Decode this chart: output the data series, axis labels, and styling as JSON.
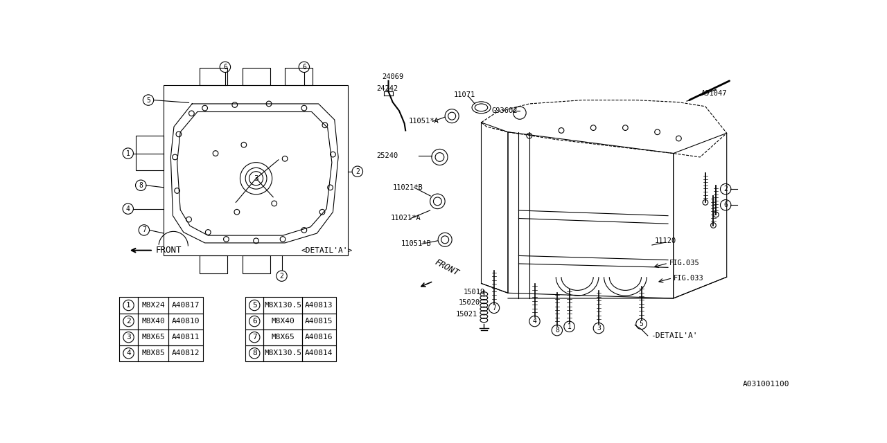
{
  "bg_color": "#ffffff",
  "line_color": "#000000",
  "diagram_code": "A031001100",
  "table_left": [
    [
      "1",
      "M8X24",
      "A40817"
    ],
    [
      "2",
      "M8X40",
      "A40810"
    ],
    [
      "3",
      "M8X65",
      "A40811"
    ],
    [
      "4",
      "M8X85",
      "A40812"
    ]
  ],
  "table_right": [
    [
      "5",
      "M8X130.5",
      "A40813"
    ],
    [
      "6",
      "M8X40",
      "A40815"
    ],
    [
      "7",
      "M8X65",
      "A40816"
    ],
    [
      "8",
      "M8X130.5",
      "A40814"
    ]
  ]
}
